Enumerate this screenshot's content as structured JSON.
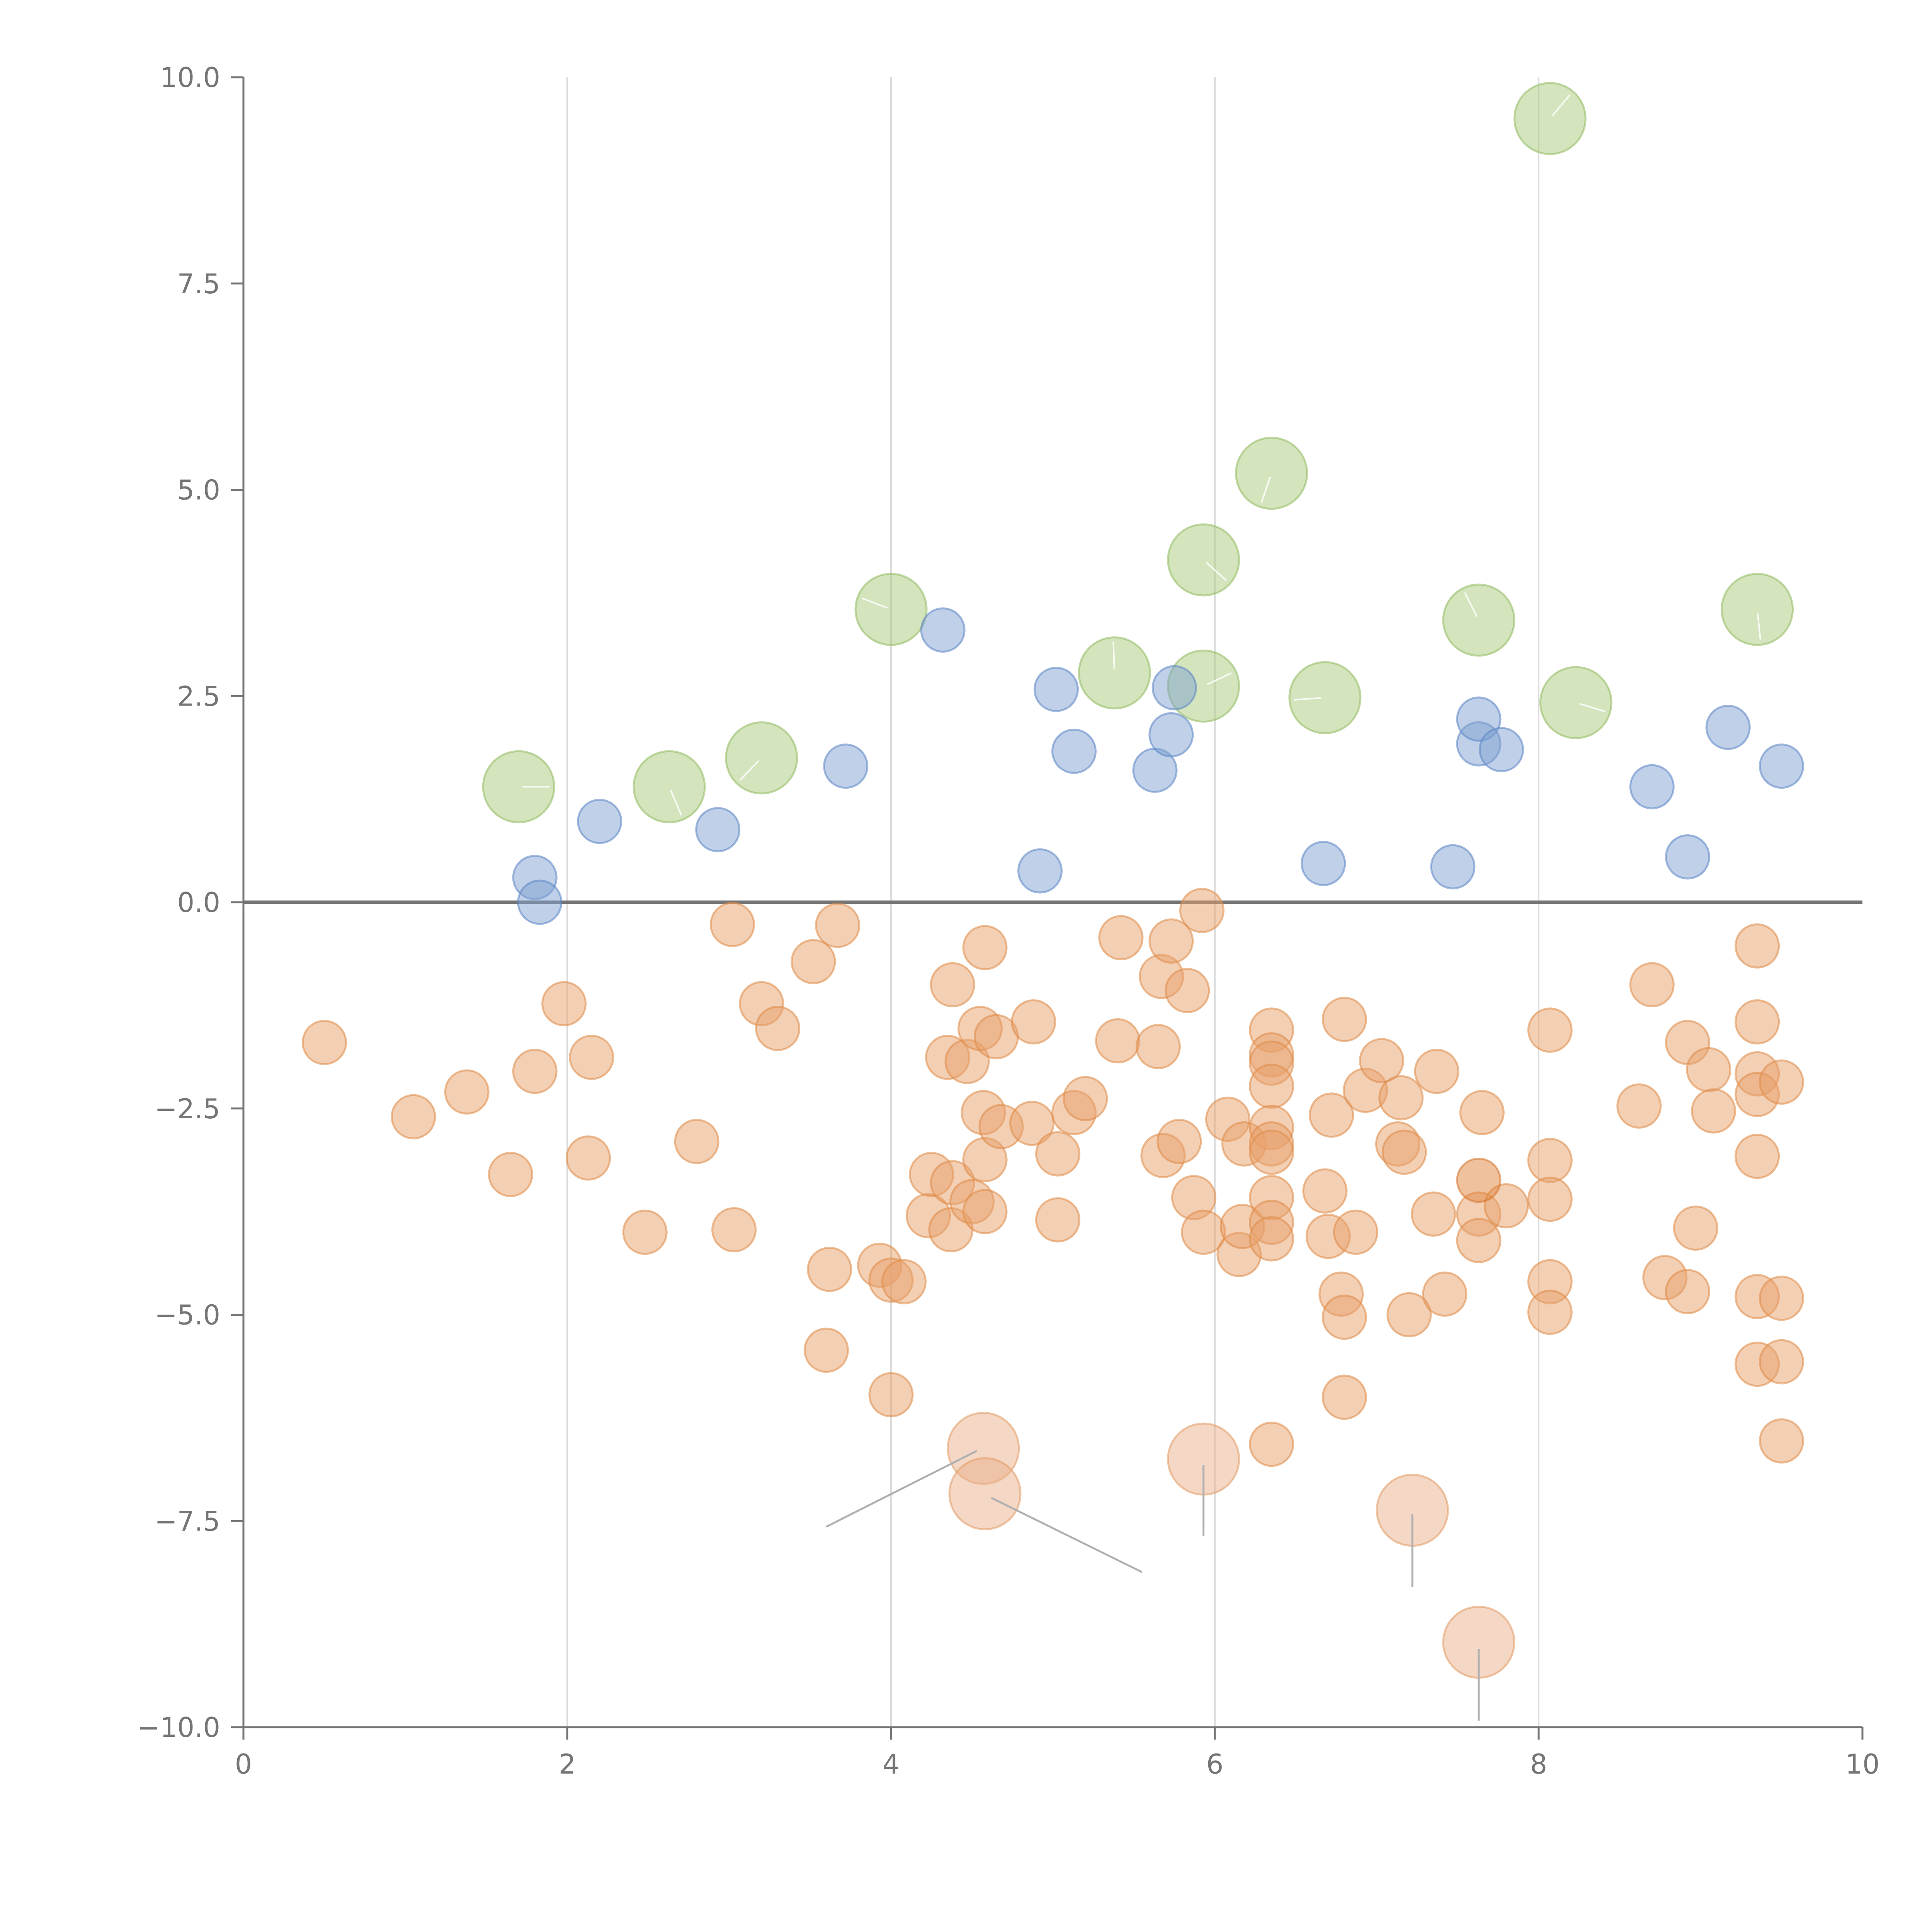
{
  "chart_data": {
    "type": "scatter",
    "title": "",
    "xlabel": "",
    "ylabel": "",
    "xlim": [
      0,
      10
    ],
    "ylim": [
      -10,
      10
    ],
    "grid": "vertical",
    "x_ticks": [
      0,
      2,
      4,
      6,
      8,
      10
    ],
    "y_ticks": [
      10,
      7.5,
      5,
      2.5,
      0,
      -2.5,
      -5,
      -7.5,
      -10
    ],
    "x_tick_labels": [
      "0",
      "2",
      "4",
      "6",
      "8",
      "10"
    ],
    "y_tick_labels": [
      "10.0",
      "7.5",
      "5.0",
      "2.5",
      "0.0",
      "−2.5",
      "−5.0",
      "−7.5",
      "−10.0"
    ],
    "reference_line": {
      "y": 0
    },
    "series": [
      {
        "name": "green",
        "color": "#a9c97c",
        "stroke": "#8fb95e",
        "size": "large",
        "points": [
          [
            1.7,
            1.4
          ],
          [
            2.63,
            1.4
          ],
          [
            3.2,
            1.75
          ],
          [
            4.0,
            3.55
          ],
          [
            5.38,
            2.78
          ],
          [
            5.93,
            2.62
          ],
          [
            5.93,
            4.15
          ],
          [
            6.35,
            5.2
          ],
          [
            6.68,
            2.48
          ],
          [
            7.63,
            3.42
          ],
          [
            8.07,
            9.5
          ],
          [
            8.23,
            2.42
          ],
          [
            9.35,
            3.55
          ]
        ]
      },
      {
        "name": "blue",
        "color": "#7fa2d1",
        "stroke": "#5a84c4",
        "size": "medium",
        "points": [
          [
            1.8,
            0.3
          ],
          [
            1.83,
            0.0
          ],
          [
            2.2,
            0.98
          ],
          [
            2.93,
            0.88
          ],
          [
            3.72,
            1.65
          ],
          [
            4.32,
            3.3
          ],
          [
            4.92,
            0.38
          ],
          [
            5.02,
            2.58
          ],
          [
            5.13,
            1.83
          ],
          [
            5.63,
            1.6
          ],
          [
            5.73,
            2.03
          ],
          [
            5.75,
            2.6
          ],
          [
            6.67,
            0.47
          ],
          [
            7.47,
            0.43
          ],
          [
            7.63,
            1.92
          ],
          [
            7.63,
            2.22
          ],
          [
            7.77,
            1.85
          ],
          [
            8.7,
            1.4
          ],
          [
            8.92,
            0.55
          ],
          [
            9.17,
            2.12
          ],
          [
            9.5,
            1.65
          ]
        ]
      },
      {
        "name": "orange",
        "color": "#e8a06a",
        "stroke": "#de8a45",
        "size": "medium",
        "points": [
          [
            0.5,
            -1.7
          ],
          [
            1.05,
            -2.6
          ],
          [
            1.38,
            -2.3
          ],
          [
            1.65,
            -3.3
          ],
          [
            1.8,
            -2.05
          ],
          [
            1.98,
            -1.23
          ],
          [
            2.13,
            -3.1
          ],
          [
            2.15,
            -1.88
          ],
          [
            2.48,
            -4.0
          ],
          [
            2.8,
            -2.9
          ],
          [
            3.02,
            -0.27
          ],
          [
            3.03,
            -3.97
          ],
          [
            3.2,
            -1.23
          ],
          [
            3.3,
            -1.53
          ],
          [
            3.52,
            -0.72
          ],
          [
            3.6,
            -5.43
          ],
          [
            3.62,
            -4.45
          ],
          [
            3.67,
            -0.28
          ],
          [
            3.93,
            -4.4
          ],
          [
            4.0,
            -5.97
          ],
          [
            4.0,
            -4.58
          ],
          [
            4.08,
            -4.6
          ],
          [
            4.23,
            -3.8
          ],
          [
            4.25,
            -3.3
          ],
          [
            4.35,
            -1.88
          ],
          [
            4.37,
            -3.97
          ],
          [
            4.38,
            -3.4
          ],
          [
            4.38,
            -1.0
          ],
          [
            4.47,
            -1.93
          ],
          [
            4.5,
            -3.63
          ],
          [
            4.55,
            -1.53
          ],
          [
            4.57,
            -2.55
          ],
          [
            4.58,
            -3.12
          ],
          [
            4.58,
            -3.75
          ],
          [
            4.58,
            -0.55
          ],
          [
            4.65,
            -1.63
          ],
          [
            4.68,
            -2.72
          ],
          [
            4.87,
            -2.68
          ],
          [
            4.88,
            -1.45
          ],
          [
            5.03,
            -3.85
          ],
          [
            5.03,
            -3.05
          ],
          [
            5.13,
            -2.55
          ],
          [
            5.2,
            -2.38
          ],
          [
            5.4,
            -1.68
          ],
          [
            5.42,
            -0.43
          ],
          [
            5.65,
            -1.75
          ],
          [
            5.67,
            -0.9
          ],
          [
            5.68,
            -3.07
          ],
          [
            5.73,
            -0.47
          ],
          [
            5.78,
            -2.9
          ],
          [
            5.83,
            -1.07
          ],
          [
            5.87,
            -3.58
          ],
          [
            5.92,
            -0.1
          ],
          [
            5.93,
            -4.0
          ],
          [
            6.08,
            -2.63
          ],
          [
            6.15,
            -4.27
          ],
          [
            6.17,
            -3.93
          ],
          [
            6.18,
            -2.93
          ],
          [
            6.35,
            -1.55
          ],
          [
            6.35,
            -1.85
          ],
          [
            6.35,
            -1.95
          ],
          [
            6.35,
            -2.23
          ],
          [
            6.35,
            -2.73
          ],
          [
            6.35,
            -2.93
          ],
          [
            6.35,
            -3.03
          ],
          [
            6.35,
            -3.58
          ],
          [
            6.35,
            -3.88
          ],
          [
            6.35,
            -4.08
          ],
          [
            6.35,
            -6.57
          ],
          [
            6.68,
            -3.5
          ],
          [
            6.7,
            -4.05
          ],
          [
            6.72,
            -2.58
          ],
          [
            6.78,
            -4.75
          ],
          [
            6.8,
            -5.03
          ],
          [
            6.8,
            -6.0
          ],
          [
            6.8,
            -1.42
          ],
          [
            6.87,
            -4.0
          ],
          [
            6.93,
            -2.28
          ],
          [
            7.03,
            -1.92
          ],
          [
            7.13,
            -2.93
          ],
          [
            7.15,
            -2.37
          ],
          [
            7.17,
            -3.03
          ],
          [
            7.2,
            -5.0
          ],
          [
            7.35,
            -3.78
          ],
          [
            7.37,
            -2.05
          ],
          [
            7.42,
            -4.75
          ],
          [
            7.63,
            -3.78
          ],
          [
            7.63,
            -4.1
          ],
          [
            7.65,
            -2.55
          ],
          [
            7.8,
            -3.68
          ],
          [
            8.07,
            -1.55
          ],
          [
            8.07,
            -3.13
          ],
          [
            8.07,
            -3.6
          ],
          [
            8.07,
            -4.6
          ],
          [
            8.07,
            -4.97
          ],
          [
            8.62,
            -2.47
          ],
          [
            8.7,
            -1.0
          ],
          [
            8.78,
            -4.55
          ],
          [
            8.92,
            -1.7
          ],
          [
            8.92,
            -4.72
          ],
          [
            8.97,
            -3.95
          ],
          [
            9.05,
            -2.03
          ],
          [
            9.08,
            -2.53
          ],
          [
            9.35,
            -0.53
          ],
          [
            9.35,
            -1.45
          ],
          [
            9.35,
            -2.08
          ],
          [
            9.35,
            -2.33
          ],
          [
            9.35,
            -3.08
          ],
          [
            9.35,
            -4.78
          ],
          [
            9.35,
            -5.6
          ],
          [
            9.5,
            -2.18
          ],
          [
            9.5,
            -4.8
          ],
          [
            9.5,
            -5.57
          ],
          [
            9.5,
            -6.53
          ]
        ]
      },
      {
        "name": "orange-highlight",
        "color": "#e0843c",
        "stroke": "#d3722a",
        "size": "medium",
        "points": [
          [
            7.63,
            -3.37
          ]
        ]
      },
      {
        "name": "orange-large",
        "color": "#eab089",
        "stroke": "#e19a65",
        "size": "large",
        "points": [
          [
            4.57,
            -6.62
          ],
          [
            4.58,
            -7.17
          ],
          [
            5.93,
            -6.75
          ],
          [
            7.22,
            -7.37
          ],
          [
            7.63,
            -8.97
          ]
        ]
      }
    ],
    "annotations": [
      {
        "from": [
          4.53,
          -6.65
        ],
        "to": [
          3.6,
          -7.57
        ]
      },
      {
        "from": [
          4.62,
          -7.22
        ],
        "to": [
          5.55,
          -8.12
        ]
      },
      {
        "from": [
          5.93,
          -6.82
        ],
        "to": [
          5.93,
          -7.68
        ]
      },
      {
        "from": [
          7.22,
          -7.42
        ],
        "to": [
          7.22,
          -8.3
        ]
      },
      {
        "from": [
          7.63,
          -9.05
        ],
        "to": [
          7.63,
          -9.92
        ]
      }
    ]
  }
}
